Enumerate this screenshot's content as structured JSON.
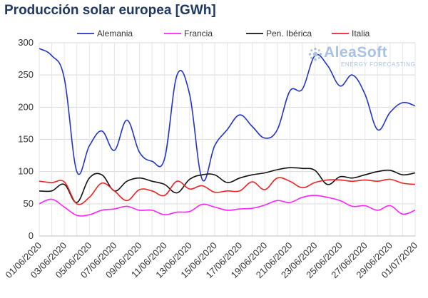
{
  "chart_data": {
    "type": "line",
    "title": "Producción solar europea [GWh]",
    "xlabel": "",
    "ylabel": "",
    "ylim": [
      0,
      300
    ],
    "yticks": [
      0,
      50,
      100,
      150,
      200,
      250,
      300
    ],
    "grid": "horizontal",
    "legend": "top",
    "x": [
      "01/06/2020",
      "02/06/2020",
      "03/06/2020",
      "04/06/2020",
      "05/06/2020",
      "06/06/2020",
      "07/06/2020",
      "08/06/2020",
      "09/06/2020",
      "10/06/2020",
      "11/06/2020",
      "12/06/2020",
      "13/06/2020",
      "14/06/2020",
      "15/06/2020",
      "16/06/2020",
      "17/06/2020",
      "18/06/2020",
      "19/06/2020",
      "20/06/2020",
      "21/06/2020",
      "22/06/2020",
      "23/06/2020",
      "24/06/2020",
      "25/06/2020",
      "26/06/2020",
      "27/06/2020",
      "28/06/2020",
      "29/06/2020",
      "30/06/2020",
      "01/07/2020"
    ],
    "xtick_labels": [
      "01/06/2020",
      "03/06/2020",
      "05/06/2020",
      "07/06/2020",
      "09/06/2020",
      "11/06/2020",
      "13/06/2020",
      "15/06/2020",
      "17/06/2020",
      "19/06/2020",
      "21/06/2020",
      "23/06/2020",
      "25/06/2020",
      "27/06/2020",
      "29/06/2020",
      "01/07/2020"
    ],
    "series": [
      {
        "name": "Alemania",
        "color": "#2233cc",
        "values": [
          291,
          280,
          245,
          100,
          140,
          163,
          133,
          180,
          130,
          116,
          120,
          250,
          220,
          88,
          140,
          165,
          188,
          170,
          152,
          165,
          225,
          228,
          280,
          265,
          233,
          250,
          220,
          165,
          192,
          207,
          202
        ]
      },
      {
        "name": "Francia",
        "color": "#ff22ff",
        "values": [
          50,
          57,
          45,
          32,
          33,
          40,
          42,
          46,
          40,
          40,
          33,
          37,
          38,
          49,
          45,
          40,
          42,
          43,
          48,
          55,
          52,
          60,
          63,
          60,
          55,
          46,
          47,
          40,
          47,
          34,
          40
        ]
      },
      {
        "name": "Pen. Ibérica",
        "color": "#111111",
        "values": [
          70,
          70,
          80,
          52,
          90,
          95,
          70,
          85,
          90,
          85,
          80,
          67,
          88,
          95,
          95,
          83,
          90,
          95,
          98,
          103,
          106,
          105,
          102,
          80,
          92,
          90,
          95,
          100,
          102,
          95,
          98
        ]
      },
      {
        "name": "Italia",
        "color": "#ee2222",
        "values": [
          85,
          83,
          84,
          50,
          60,
          82,
          70,
          55,
          72,
          70,
          63,
          85,
          73,
          78,
          68,
          70,
          70,
          84,
          72,
          90,
          85,
          75,
          83,
          87,
          87,
          85,
          87,
          85,
          88,
          82,
          80
        ]
      }
    ]
  },
  "logo": {
    "brand": "AleaSoft",
    "tagline": "ENERGY FORECASTING",
    "color": "#a9c2e4"
  }
}
